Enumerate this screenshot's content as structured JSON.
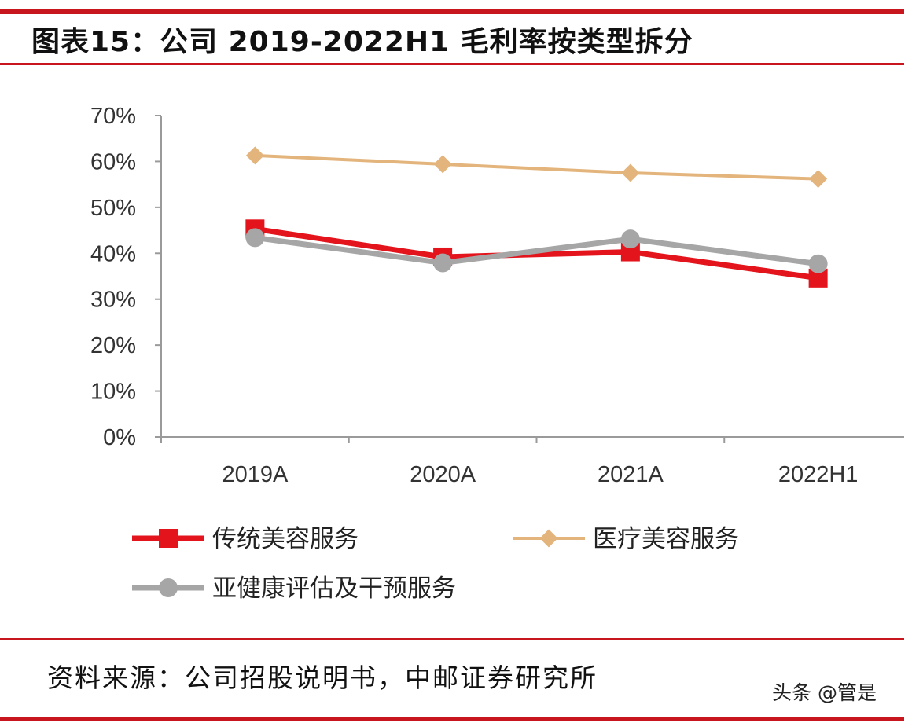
{
  "header": {
    "title": "图表15：公司 2019-2022H1 毛利率按类型拆分"
  },
  "footer": {
    "source": "资料来源：公司招股说明书，中邮证券研究所",
    "watermark": "头条 @管是"
  },
  "colors": {
    "accent": "#c8161e",
    "axis": "#9a9a9a"
  },
  "chart_data": {
    "type": "line",
    "title": "公司 2019-2022H1 毛利率按类型拆分",
    "categories": [
      "2019A",
      "2020A",
      "2021A",
      "2022H1"
    ],
    "y_ticks": [
      "0%",
      "10%",
      "20%",
      "30%",
      "40%",
      "50%",
      "60%",
      "70%"
    ],
    "ylim": [
      0,
      70
    ],
    "grid": false,
    "legend_position": "bottom",
    "series": [
      {
        "name": "传统美容服务",
        "values": [
          45.3,
          39.2,
          40.3,
          34.6
        ],
        "color": "#e3141c",
        "marker": "square"
      },
      {
        "name": "医疗美容服务",
        "values": [
          61.3,
          59.4,
          57.5,
          56.2
        ],
        "color": "#e3b47b",
        "marker": "diamond"
      },
      {
        "name": "亚健康评估及干预服务",
        "values": [
          43.4,
          37.9,
          43.1,
          37.7
        ],
        "color": "#a6a6a6",
        "marker": "circle"
      }
    ]
  }
}
